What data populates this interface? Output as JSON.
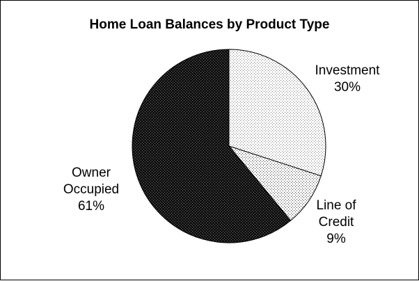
{
  "chart_data": {
    "type": "pie",
    "title": "Home Loan Balances by Product Type",
    "legend": "none",
    "slices": [
      {
        "name": "Investment",
        "value": 30,
        "percent_label": "30%",
        "label_lines": [
          "Investment",
          "30%"
        ],
        "fill": "dots-light",
        "colors": {
          "background": "#ffffff",
          "dot": "#7a7a7a"
        }
      },
      {
        "name": "Line of Credit",
        "value": 9,
        "percent_label": "9%",
        "label_lines": [
          "Line of",
          "Credit",
          "9%"
        ],
        "fill": "dots-sparse",
        "colors": {
          "background": "#ffffff",
          "dot": "#333333"
        }
      },
      {
        "name": "Owner Occupied",
        "value": 61,
        "percent_label": "61%",
        "label_lines": [
          "Owner",
          "Occupied",
          "61%"
        ],
        "fill": "dots-dark",
        "colors": {
          "background": "#111111",
          "dot": "#6a6a6a"
        }
      }
    ]
  }
}
